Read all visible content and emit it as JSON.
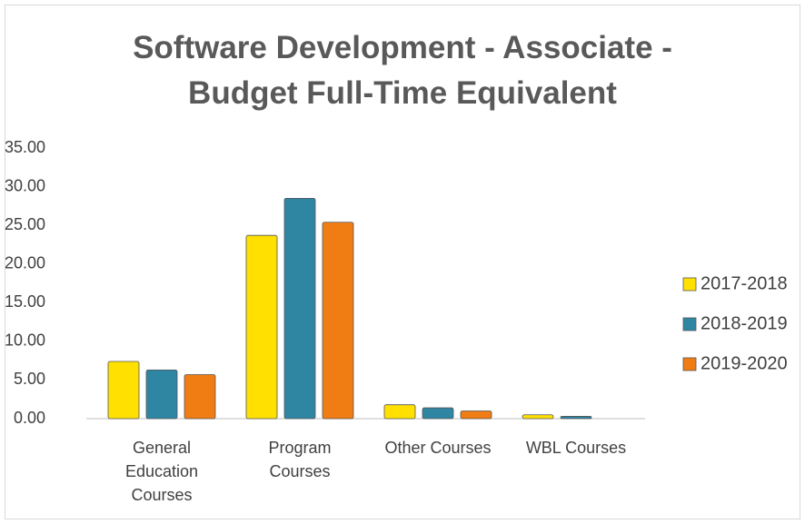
{
  "chart_data": {
    "type": "bar",
    "title": "Software Development - Associate - Budget Full-Time Equivalent",
    "categories": [
      "General Education Courses",
      "Program Courses",
      "Other Courses",
      "WBL Courses"
    ],
    "series": [
      {
        "name": "2017-2018",
        "color": "#ffe000",
        "values": [
          7.4,
          23.7,
          1.8,
          0.5
        ]
      },
      {
        "name": "2018-2019",
        "color": "#2e86a3",
        "values": [
          6.3,
          28.5,
          1.4,
          0.3
        ]
      },
      {
        "name": "2019-2020",
        "color": "#f07c14",
        "values": [
          5.7,
          25.4,
          1.0,
          0
        ]
      }
    ],
    "ylim": [
      0,
      35
    ],
    "yticks": [
      {
        "value": 0,
        "label": "0.00"
      },
      {
        "value": 5,
        "label": "5.00"
      },
      {
        "value": 10,
        "label": "10.00"
      },
      {
        "value": 15,
        "label": "15.00"
      },
      {
        "value": 20,
        "label": "20.00"
      },
      {
        "value": 25,
        "label": "25.00"
      },
      {
        "value": 30,
        "label": "30.00"
      },
      {
        "value": 35,
        "label": "35.00"
      }
    ],
    "legend": "right"
  }
}
